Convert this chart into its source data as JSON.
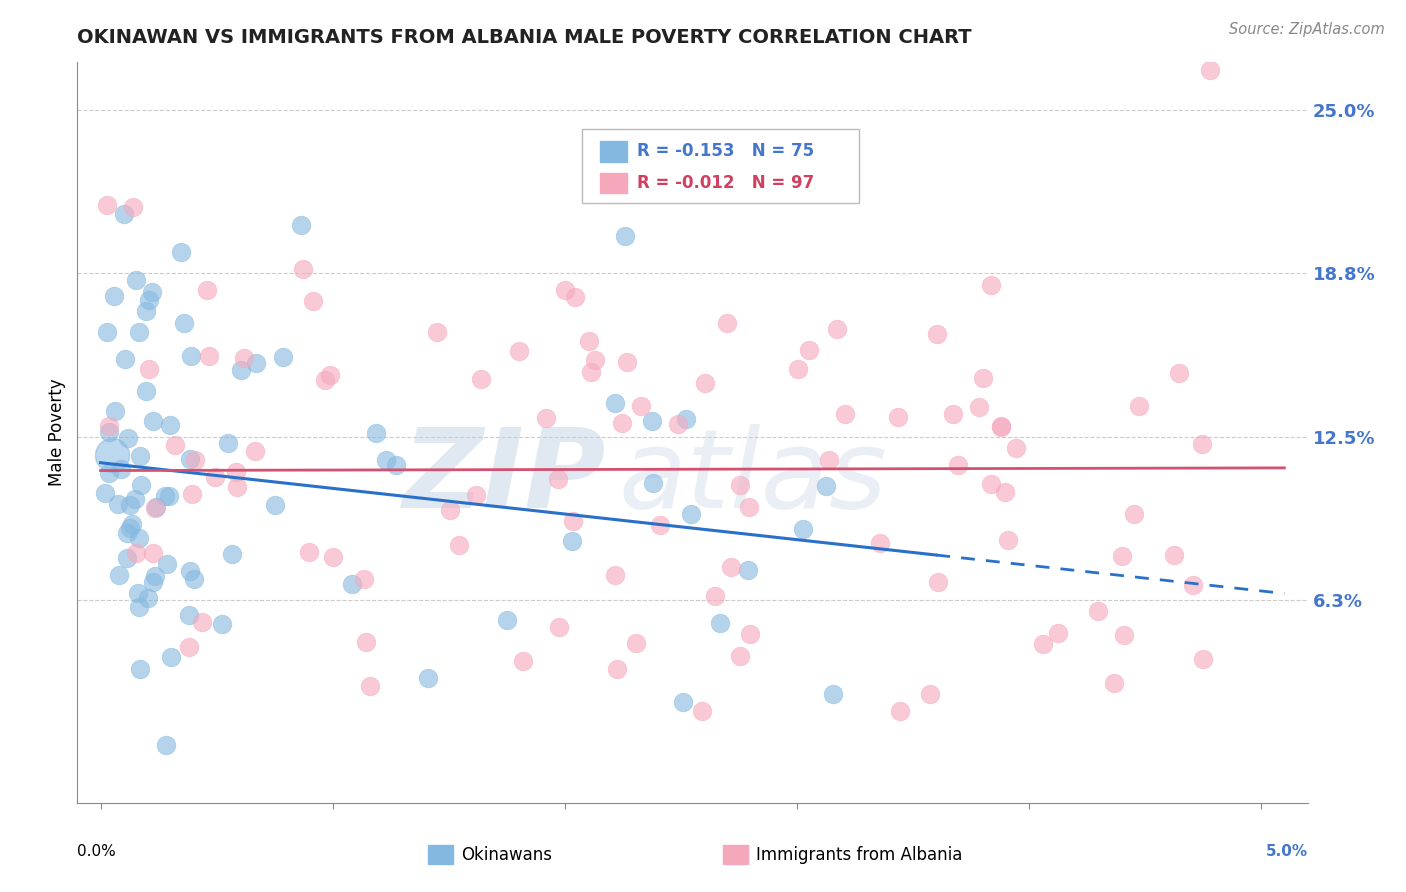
{
  "title": "OKINAWAN VS IMMIGRANTS FROM ALBANIA MALE POVERTY CORRELATION CHART",
  "source": "Source: ZipAtlas.com",
  "ylabel": "Male Poverty",
  "ytick_values": [
    0.0625,
    0.125,
    0.1875,
    0.25
  ],
  "ytick_labels": [
    "6.3%",
    "12.5%",
    "18.8%",
    "25.0%"
  ],
  "xlim": [
    -0.001,
    0.052
  ],
  "ylim": [
    -0.015,
    0.268
  ],
  "series1_label": "Okinawans",
  "series1_color": "#85b8e0",
  "series1_line_color": "#2a70c8",
  "series1_R": -0.153,
  "series1_N": 75,
  "series2_label": "Immigrants from Albania",
  "series2_color": "#f5a8bc",
  "series2_line_color": "#d45070",
  "series2_R": -0.012,
  "series2_N": 97,
  "watermark_text": "ZIPatlas",
  "watermark_color": "#d0dde8",
  "background_color": "#ffffff",
  "grid_color": "#cccccc",
  "right_label_color": "#4477cc"
}
